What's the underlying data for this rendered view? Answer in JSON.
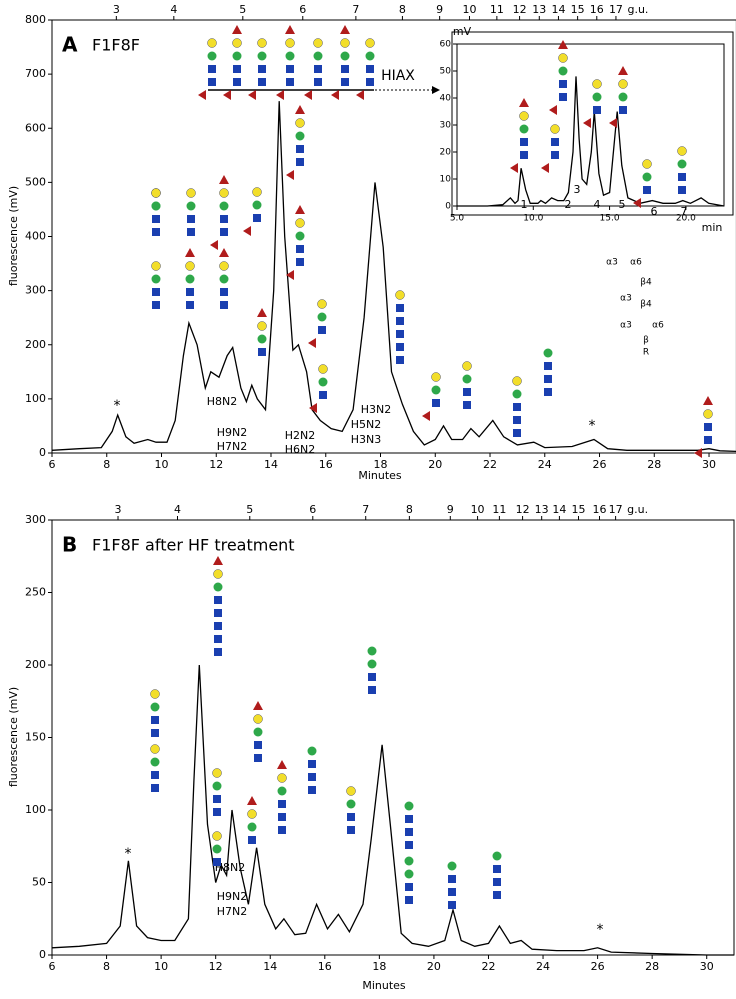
{
  "chart_data": [
    {
      "type": "line",
      "panel": "A",
      "title": "F1F8F",
      "xlabel": "Minutes",
      "ylabel": "fluorescence (mV)",
      "color": "#000000",
      "xlim": [
        6,
        31
      ],
      "ylim": [
        0,
        800
      ],
      "xticks": [
        6,
        8,
        10,
        12,
        14,
        16,
        18,
        20,
        22,
        24,
        26,
        28,
        30
      ],
      "yticks": [
        0,
        100,
        200,
        300,
        400,
        500,
        600,
        700,
        800
      ],
      "top_axis_label": "g.u.",
      "top_ticks": [
        {
          "value": 8.35,
          "label": "3"
        },
        {
          "value": 10.45,
          "label": "4"
        },
        {
          "value": 12.97,
          "label": "5"
        },
        {
          "value": 15.16,
          "label": "6"
        },
        {
          "value": 17.1,
          "label": "7"
        },
        {
          "value": 18.8,
          "label": "8"
        },
        {
          "value": 20.16,
          "label": "9"
        },
        {
          "value": 21.25,
          "label": "10"
        },
        {
          "value": 22.25,
          "label": "11"
        },
        {
          "value": 23.08,
          "label": "12"
        },
        {
          "value": 23.8,
          "label": "13"
        },
        {
          "value": 24.5,
          "label": "14"
        },
        {
          "value": 25.2,
          "label": "15"
        },
        {
          "value": 25.9,
          "label": "16"
        },
        {
          "value": 26.6,
          "label": "17"
        }
      ],
      "x": [
        6,
        7,
        7.8,
        8.2,
        8.4,
        8.7,
        9,
        9.5,
        9.8,
        10.2,
        10.5,
        10.8,
        11,
        11.3,
        11.6,
        11.8,
        12.1,
        12.4,
        12.6,
        12.9,
        13.1,
        13.3,
        13.5,
        13.8,
        14.1,
        14.3,
        14.5,
        14.8,
        15,
        15.3,
        15.5,
        15.8,
        16.2,
        16.6,
        17,
        17.4,
        17.8,
        18.1,
        18.4,
        18.8,
        19.2,
        19.6,
        20,
        20.3,
        20.6,
        21,
        21.3,
        21.6,
        22.1,
        22.5,
        23,
        23.6,
        24,
        25,
        25.8,
        26.3,
        27,
        28,
        29,
        29.6,
        30,
        30.4,
        31
      ],
      "values": [
        5,
        8,
        10,
        40,
        70,
        30,
        18,
        25,
        20,
        20,
        60,
        180,
        240,
        200,
        120,
        150,
        140,
        180,
        195,
        120,
        95,
        125,
        100,
        80,
        300,
        650,
        400,
        190,
        200,
        150,
        80,
        60,
        45,
        40,
        80,
        250,
        500,
        380,
        150,
        90,
        40,
        15,
        25,
        50,
        25,
        25,
        45,
        30,
        60,
        30,
        15,
        20,
        10,
        12,
        25,
        8,
        5,
        5,
        5,
        5,
        8,
        4,
        3
      ],
      "annotations": [
        "H8N2",
        "H9N2",
        "H7N2",
        "H2N2",
        "H6N2",
        "H5N2",
        "H3N3",
        "H3N2",
        "HIAX",
        "*",
        "*"
      ],
      "linkage_labels": [
        "α3",
        "α6",
        "β4",
        "α3",
        "β4",
        "α3",
        "α6",
        "β",
        "R"
      ],
      "inset": {
        "type": "line",
        "xlabel": "min",
        "ylabel": "mV",
        "color": "#000000",
        "xlim": [
          5,
          22.5
        ],
        "ylim": [
          0,
          60
        ],
        "xticks": [
          {
            "value": 5,
            "label": "5.0"
          },
          {
            "value": 10,
            "label": "10.0"
          },
          {
            "value": 15,
            "label": "15.0"
          },
          {
            "value": 20,
            "label": "20.0"
          }
        ],
        "yticks": [
          0,
          10,
          20,
          30,
          40,
          50,
          60
        ],
        "x": [
          5,
          6,
          7,
          8,
          8.5,
          8.8,
          9,
          9.2,
          9.5,
          9.8,
          10.3,
          10.5,
          10.8,
          11.2,
          11.6,
          12,
          12.3,
          12.6,
          12.8,
          13,
          13.2,
          13.5,
          13.8,
          14,
          14.3,
          14.6,
          15,
          15.5,
          15.8,
          16.2,
          17,
          17.8,
          18.5,
          19.3,
          19.8,
          20.3,
          21,
          21.5,
          22.5
        ],
        "values": [
          0,
          0,
          0,
          0.5,
          3,
          1,
          2,
          14,
          6,
          1,
          1,
          2,
          1,
          3,
          2,
          2,
          5,
          20,
          48,
          25,
          10,
          8,
          20,
          35,
          12,
          4,
          5,
          35,
          15,
          3,
          1,
          2,
          1,
          1,
          2,
          1,
          3,
          1,
          0
        ],
        "peak_labels": [
          "1",
          "2",
          "3",
          "4",
          "5",
          "6",
          "7"
        ]
      }
    },
    {
      "type": "line",
      "panel": "B",
      "title": "F1F8F after HF treatment",
      "xlabel": "Minutes",
      "ylabel": "fluorescence (mV)",
      "color": "#000000",
      "xlim": [
        6,
        31
      ],
      "ylim": [
        0,
        300
      ],
      "xticks": [
        6,
        8,
        10,
        12,
        14,
        16,
        18,
        20,
        22,
        24,
        26,
        28,
        30
      ],
      "yticks": [
        0,
        50,
        100,
        150,
        200,
        250,
        300
      ],
      "top_axis_label": "g.u.",
      "top_ticks": [
        {
          "value": 8.42,
          "label": "3"
        },
        {
          "value": 10.6,
          "label": "4"
        },
        {
          "value": 13.25,
          "label": "5"
        },
        {
          "value": 15.56,
          "label": "6"
        },
        {
          "value": 17.5,
          "label": "7"
        },
        {
          "value": 19.1,
          "label": "8"
        },
        {
          "value": 20.6,
          "label": "9"
        },
        {
          "value": 21.6,
          "label": "10"
        },
        {
          "value": 22.4,
          "label": "11"
        },
        {
          "value": 23.25,
          "label": "12"
        },
        {
          "value": 23.95,
          "label": "13"
        },
        {
          "value": 24.6,
          "label": "14"
        },
        {
          "value": 25.3,
          "label": "15"
        },
        {
          "value": 26.07,
          "label": "16"
        },
        {
          "value": 26.66,
          "label": "17"
        }
      ],
      "x": [
        6,
        7,
        8,
        8.5,
        8.8,
        9.1,
        9.5,
        10,
        10.5,
        11,
        11.2,
        11.4,
        11.7,
        12,
        12.2,
        12.4,
        12.6,
        12.9,
        13.2,
        13.5,
        13.8,
        14.2,
        14.5,
        14.9,
        15.3,
        15.7,
        16.1,
        16.5,
        16.9,
        17.4,
        17.7,
        18.1,
        18.4,
        18.8,
        19.2,
        19.8,
        20.4,
        20.7,
        21,
        21.5,
        22,
        22.4,
        22.8,
        23.2,
        23.6,
        24.5,
        25.5,
        26,
        26.5,
        28,
        30,
        31
      ],
      "values": [
        5,
        6,
        8,
        20,
        65,
        20,
        12,
        10,
        10,
        25,
        120,
        200,
        90,
        50,
        62,
        55,
        100,
        60,
        35,
        74,
        35,
        18,
        25,
        14,
        15,
        35,
        18,
        28,
        16,
        35,
        80,
        145,
        90,
        15,
        8,
        6,
        10,
        31,
        10,
        6,
        8,
        20,
        8,
        10,
        4,
        3,
        3,
        5,
        2,
        1,
        0,
        0
      ],
      "annotations": [
        "H8N2",
        "H9N2",
        "H7N2",
        "*",
        "*"
      ]
    }
  ]
}
